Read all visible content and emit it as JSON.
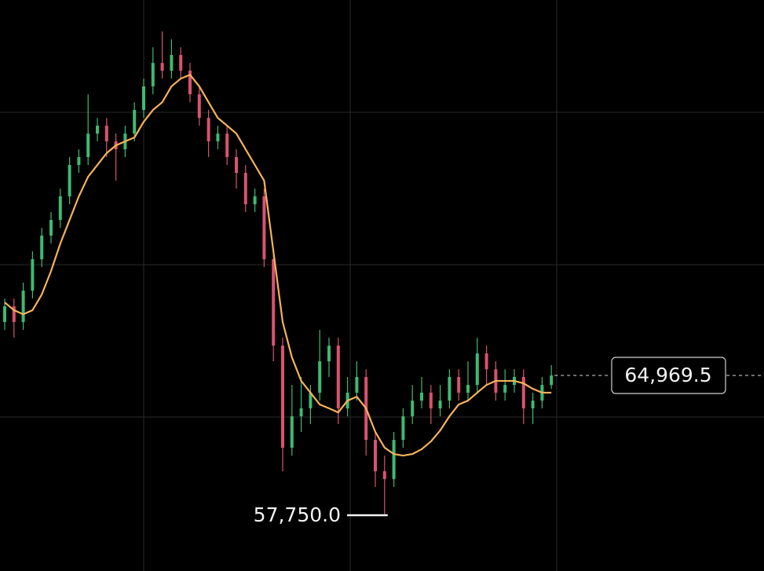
{
  "chart_data": {
    "type": "candlestick",
    "ylim": [
      54870,
      84360
    ],
    "up_color": "#3fb972",
    "down_color": "#d9536e",
    "ma_color": "#f5b35c",
    "open": [
      67730,
      68540,
      67730,
      69350,
      70970,
      72190,
      73000,
      74220,
      75840,
      76250,
      77460,
      77870,
      77060,
      76650,
      77460,
      78680,
      79900,
      81110,
      80710,
      81520,
      80710,
      79490,
      78270,
      77060,
      77460,
      76250,
      75430,
      73810,
      74220,
      70970,
      66510,
      61240,
      62860,
      63270,
      64080,
      65700,
      66510,
      63270,
      64080,
      64890,
      61640,
      60020,
      59620,
      61640,
      62860,
      63670,
      64080,
      63270,
      63670,
      64890,
      64080,
      64480,
      66110,
      65290,
      64080,
      64480,
      64890,
      63270,
      63670,
      64480
    ],
    "high": [
      68940,
      68940,
      69760,
      71380,
      72590,
      73410,
      74620,
      76250,
      76650,
      79490,
      78270,
      78270,
      77460,
      77870,
      79080,
      80300,
      81920,
      82740,
      82330,
      81920,
      81110,
      79900,
      78680,
      77870,
      77870,
      76650,
      75840,
      74620,
      74620,
      71380,
      66920,
      64480,
      64890,
      64480,
      67320,
      66920,
      66920,
      64890,
      65700,
      65290,
      62050,
      60830,
      62050,
      63270,
      64480,
      64890,
      64480,
      64480,
      65290,
      65290,
      65700,
      66920,
      66510,
      65700,
      65290,
      65290,
      65290,
      64080,
      64890,
      65500
    ],
    "low": [
      67320,
      66920,
      67320,
      68940,
      70570,
      71780,
      72590,
      73810,
      75430,
      75840,
      77060,
      76250,
      75030,
      76250,
      77060,
      78270,
      79490,
      80300,
      80300,
      80300,
      79080,
      77870,
      76250,
      76650,
      75840,
      74620,
      73410,
      73410,
      70570,
      65700,
      60020,
      60830,
      62050,
      62460,
      63670,
      64890,
      62460,
      62860,
      63670,
      60830,
      59210,
      57750,
      59210,
      61240,
      62460,
      63270,
      62460,
      62860,
      63270,
      63670,
      63670,
      64080,
      64480,
      63670,
      63670,
      64080,
      62460,
      62460,
      63270,
      64280
    ],
    "close": [
      68540,
      67730,
      69350,
      70970,
      72190,
      73000,
      74220,
      75840,
      76250,
      77460,
      77870,
      77060,
      76650,
      77460,
      78680,
      79900,
      81110,
      80710,
      81520,
      80710,
      79490,
      78270,
      77060,
      77460,
      76250,
      75430,
      73810,
      74220,
      70970,
      66510,
      61240,
      62860,
      63270,
      64080,
      65700,
      66510,
      63270,
      64080,
      64890,
      61640,
      60020,
      59620,
      61640,
      62860,
      63670,
      64080,
      63270,
      63670,
      64890,
      64080,
      64480,
      66110,
      65290,
      64080,
      64480,
      64890,
      63270,
      63670,
      64480,
      64969.5
    ],
    "ma": [
      68740,
      68340,
      68130,
      68340,
      69150,
      70360,
      71780,
      73000,
      74220,
      75230,
      75840,
      76450,
      76850,
      77060,
      77260,
      78070,
      78680,
      79080,
      79900,
      80300,
      80500,
      79900,
      79080,
      78270,
      77870,
      77460,
      76650,
      75840,
      75030,
      71380,
      67730,
      65900,
      64690,
      64080,
      63470,
      63270,
      63060,
      63670,
      63870,
      63270,
      62050,
      61240,
      60910,
      60830,
      60910,
      61160,
      61560,
      62130,
      62860,
      63470,
      63670,
      64080,
      64480,
      64690,
      64690,
      64690,
      64560,
      64280,
      64080,
      64080
    ],
    "last_price": {
      "value": 64969.5,
      "label": "64,969.5"
    },
    "low_marker": {
      "value": 57750,
      "label": "57,750.0"
    }
  }
}
